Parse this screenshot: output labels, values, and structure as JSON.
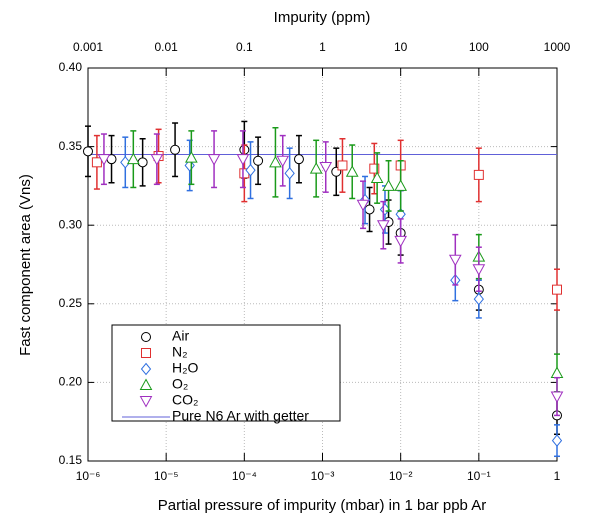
{
  "chart_data": {
    "type": "scatter",
    "xlabel": "Partial pressure of impurity (mbar) in 1 bar ppb Ar",
    "x2label": "Impurity (ppm)",
    "ylabel": "Fast component area (Vns)",
    "xscale": "log",
    "xlim": [
      1e-06,
      1
    ],
    "xticks": [
      {
        "value": 1e-06,
        "label": "10⁻⁶"
      },
      {
        "value": 1e-05,
        "label": "10⁻⁵"
      },
      {
        "value": 0.0001,
        "label": "10⁻⁴"
      },
      {
        "value": 0.001,
        "label": "10⁻³"
      },
      {
        "value": 0.01,
        "label": "10⁻²"
      },
      {
        "value": 0.1,
        "label": "10⁻¹"
      },
      1
    ],
    "x2lim": [
      0.001,
      1000
    ],
    "x2ticks": [
      0.001,
      0.01,
      0.1,
      1,
      10,
      100,
      1000
    ],
    "ylim": [
      0.15,
      0.4
    ],
    "yticks": [
      0.15,
      {
        "value": 0.2,
        "label": "0.20"
      },
      0.25,
      {
        "value": 0.3,
        "label": "0.30"
      },
      0.35,
      {
        "value": 0.4,
        "label": "0.40"
      }
    ],
    "grid": true,
    "legend": "bottom-left",
    "series": [
      {
        "name": "Air",
        "marker": "circle",
        "color": "#000000",
        "x": [
          1e-06,
          2e-06,
          5e-06,
          1.3e-05,
          0.0001,
          0.00015,
          0.0005,
          0.0015,
          0.004,
          0.007,
          0.01,
          0.1,
          1
        ],
        "values": [
          0.347,
          0.342,
          0.34,
          0.348,
          0.348,
          0.341,
          0.342,
          0.334,
          0.31,
          0.302,
          0.295,
          0.259,
          0.179
        ],
        "errors": [
          0.016,
          0.015,
          0.015,
          0.017,
          0.018,
          0.015,
          0.015,
          0.015,
          0.014,
          0.014,
          0.014,
          0.013,
          0.012
        ]
      },
      {
        "name": "N₂",
        "marker": "square",
        "color": "#e03030",
        "x": [
          1.3e-06,
          8e-06,
          0.0001,
          0.0018,
          0.0046,
          0.01,
          0.1,
          1
        ],
        "values": [
          0.34,
          0.344,
          0.333,
          0.338,
          0.336,
          0.338,
          0.332,
          0.259
        ],
        "errors": [
          0.017,
          0.017,
          0.018,
          0.017,
          0.016,
          0.016,
          0.017,
          0.013
        ]
      },
      {
        "name": "H₂O",
        "marker": "diamond",
        "color": "#3070e0",
        "x": [
          3e-06,
          2e-05,
          0.00012,
          0.00038,
          0.0035,
          0.0063,
          0.01,
          0.05,
          0.1,
          1
        ],
        "values": [
          0.34,
          0.338,
          0.335,
          0.333,
          0.316,
          0.31,
          0.307,
          0.265,
          0.253,
          0.163
        ],
        "errors": [
          0.016,
          0.016,
          0.018,
          0.016,
          0.015,
          0.015,
          0.015,
          0.013,
          0.012,
          0.01
        ]
      },
      {
        "name": "O₂",
        "marker": "triangle",
        "color": "#1a9a1a",
        "x": [
          3.8e-06,
          2.1e-05,
          0.00025,
          0.00083,
          0.0024,
          0.005,
          0.007,
          0.01,
          0.1,
          1
        ],
        "values": [
          0.342,
          0.343,
          0.34,
          0.336,
          0.334,
          0.33,
          0.325,
          0.325,
          0.28,
          0.206
        ],
        "errors": [
          0.018,
          0.017,
          0.022,
          0.018,
          0.017,
          0.016,
          0.016,
          0.016,
          0.014,
          0.012
        ]
      },
      {
        "name": "CO₂",
        "marker": "triangle-down",
        "color": "#a030c0",
        "x": [
          1.6e-06,
          7.6e-06,
          4.1e-05,
          9.6e-05,
          0.00031,
          0.0011,
          0.0033,
          0.006,
          0.01,
          0.05,
          0.1,
          1
        ],
        "values": [
          0.342,
          0.342,
          0.342,
          0.342,
          0.341,
          0.337,
          0.313,
          0.3,
          0.29,
          0.278,
          0.272,
          0.191
        ],
        "errors": [
          0.016,
          0.016,
          0.018,
          0.018,
          0.016,
          0.016,
          0.015,
          0.015,
          0.014,
          0.016,
          0.014,
          0.012
        ]
      }
    ],
    "reference_line": {
      "name": "Pure N6 Ar with getter",
      "value": 0.345,
      "color": "#6060d8",
      "label_color": "#1010c0"
    }
  }
}
